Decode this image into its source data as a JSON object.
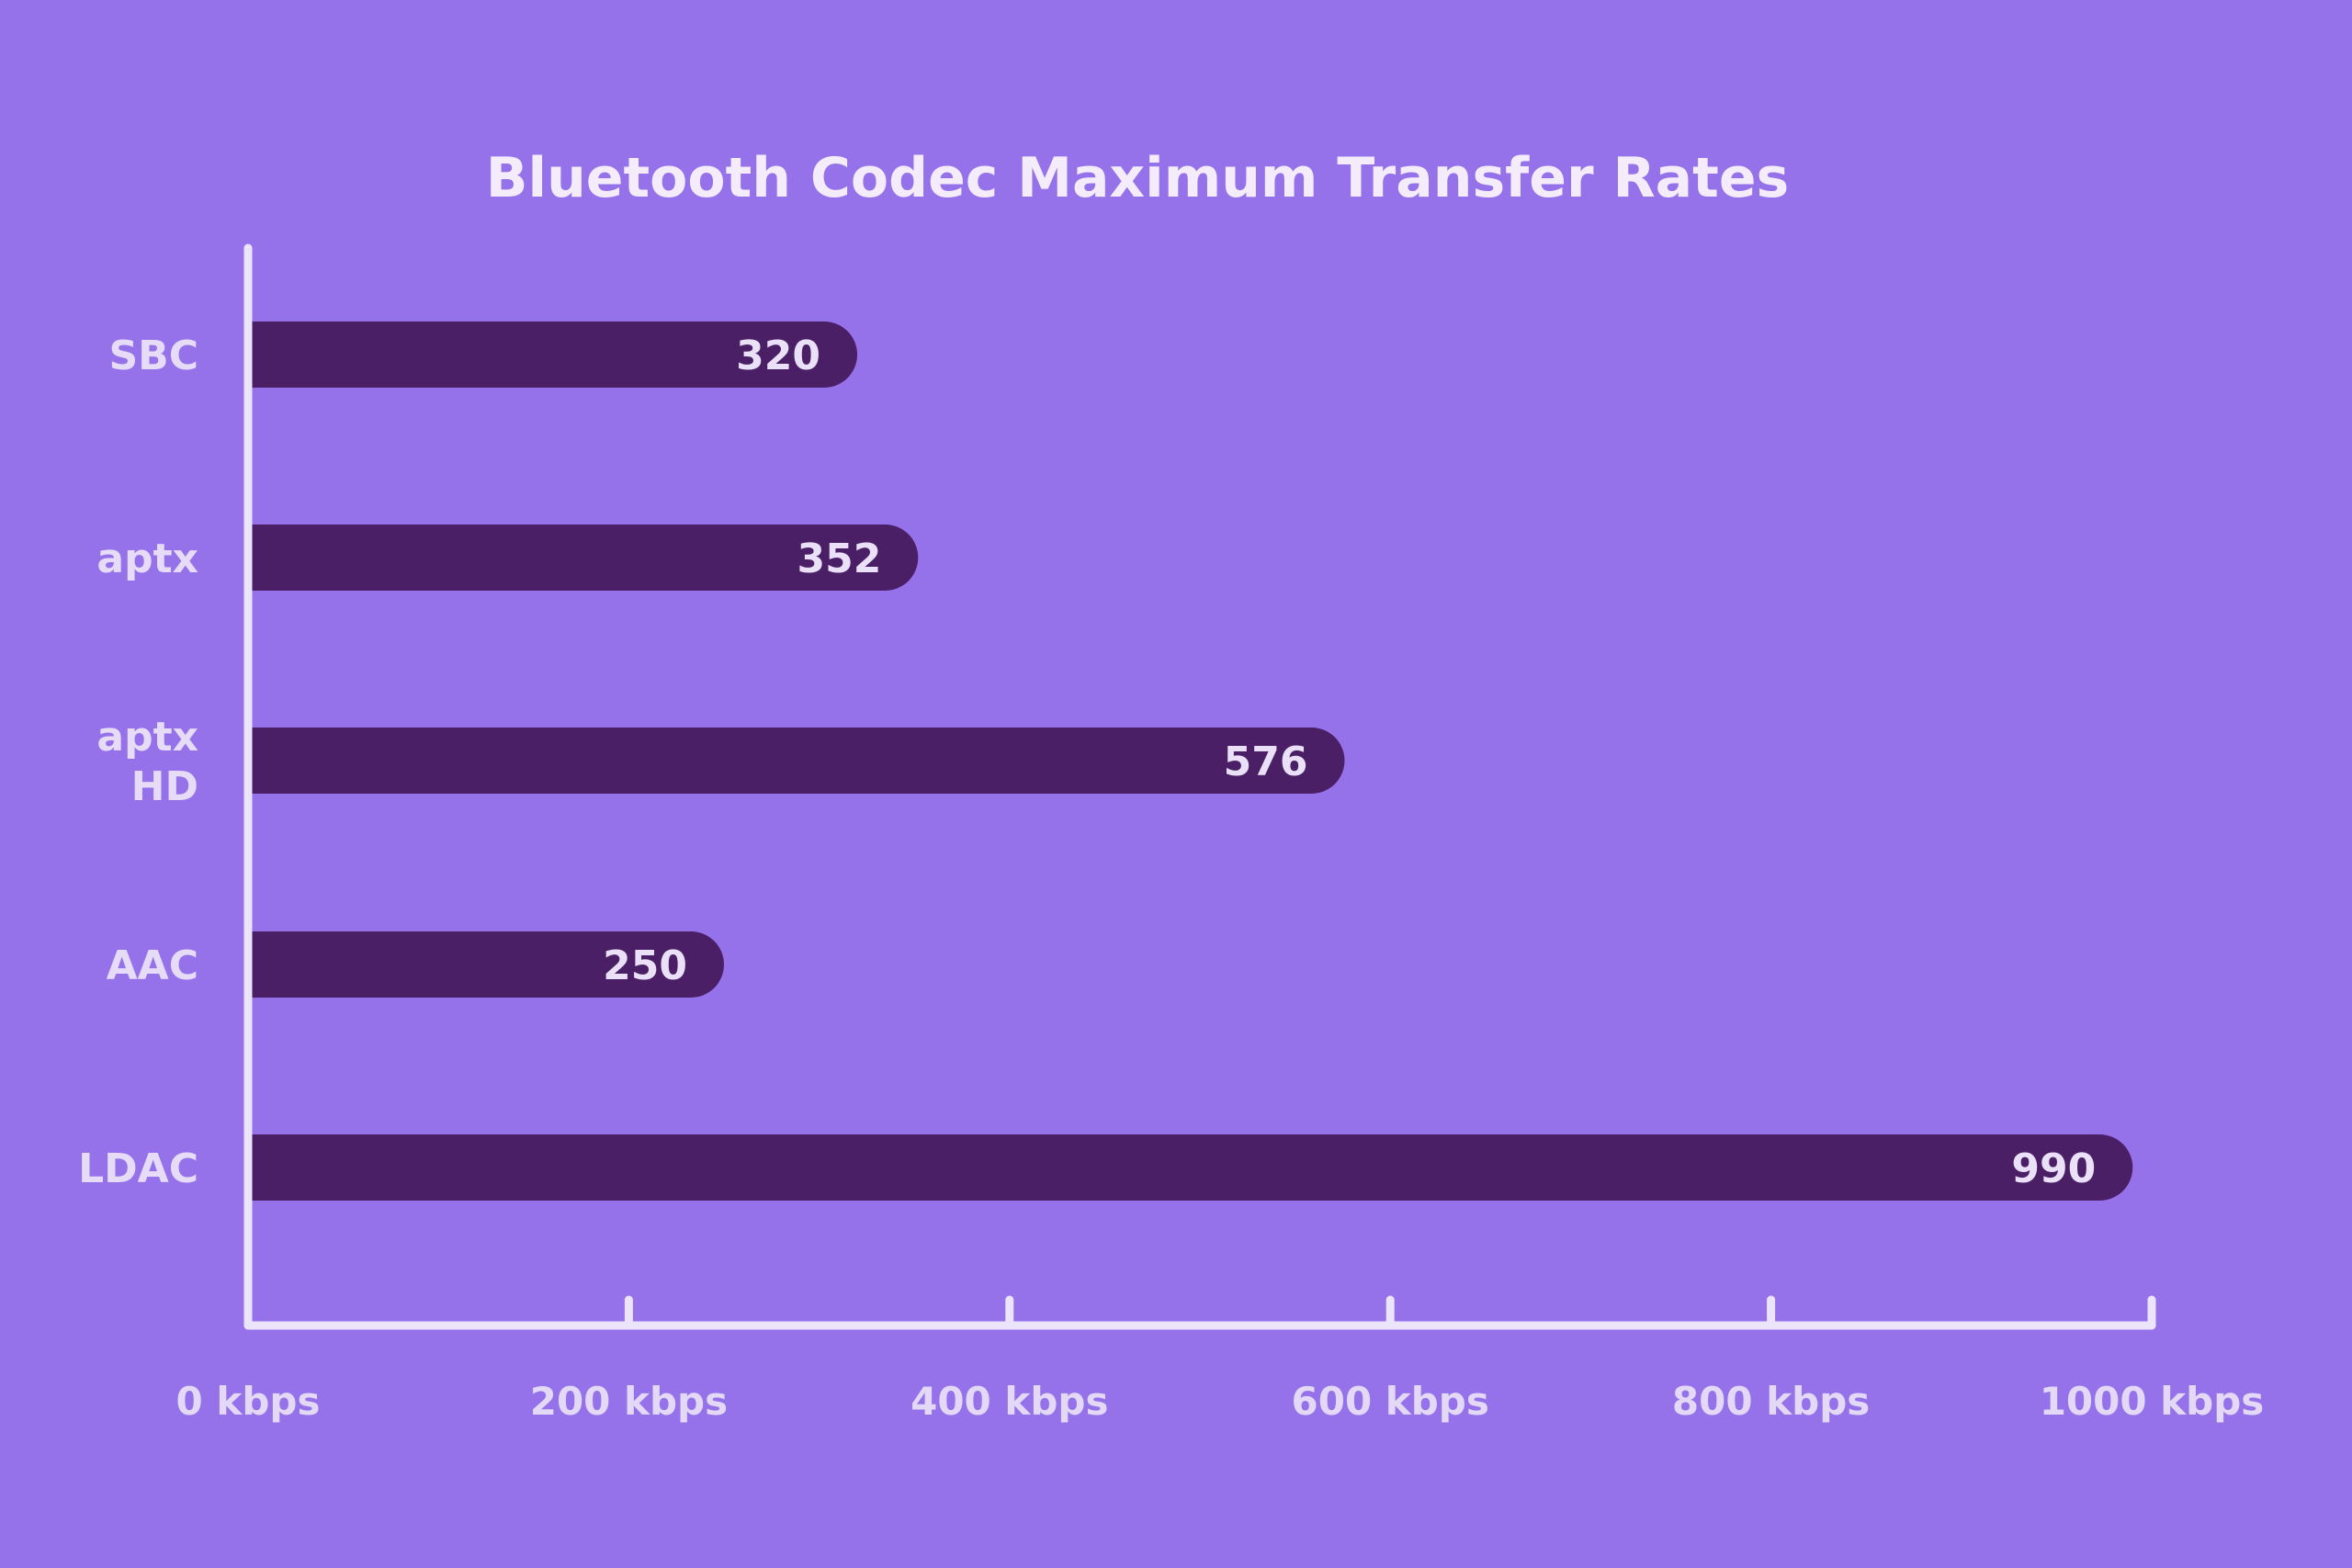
{
  "chart_data": {
    "type": "bar",
    "orientation": "horizontal",
    "title": "Bluetooth Codec Maximum Transfer Rates",
    "categories": [
      [
        "SBC"
      ],
      [
        "aptx"
      ],
      [
        "aptx",
        "HD"
      ],
      [
        "AAC"
      ],
      [
        "LDAC"
      ]
    ],
    "values": [
      320,
      352,
      576,
      250,
      990
    ],
    "value_labels": [
      "320",
      "352",
      "576",
      "250",
      "990"
    ],
    "xlim": [
      0,
      1000
    ],
    "x_ticks": [
      0,
      200,
      400,
      600,
      800,
      1000
    ],
    "x_tick_labels": [
      "0 kbps",
      "200 kbps",
      "400 kbps",
      "600 kbps",
      "800 kbps",
      "1000 kbps"
    ],
    "xlabel": "",
    "ylabel": "",
    "grid": false,
    "legend": "none",
    "colors": {
      "background": "#9672ea",
      "bar": "#4b1f66",
      "axis": "#ece4fb",
      "title": "#f4ecfb",
      "labels": "#e6dcf7"
    }
  }
}
